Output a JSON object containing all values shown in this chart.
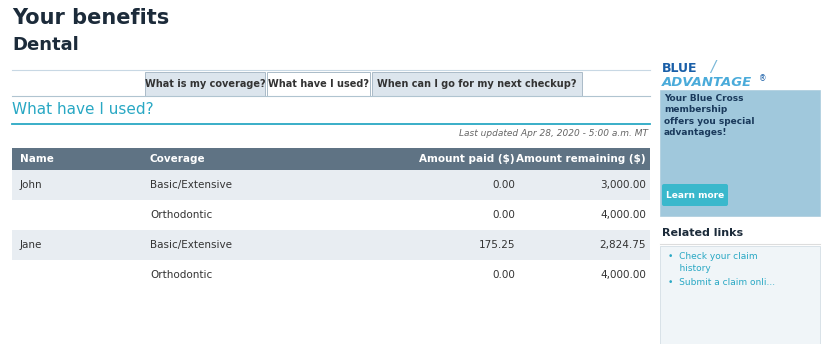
{
  "title1": "Your benefits",
  "title2": "Dental",
  "tab1": "What is my coverage?",
  "tab2": "What have I used?",
  "tab3": "When can I go for my next checkup?",
  "section_title": "What have I used?",
  "last_updated": "Last updated Apr 28, 2020 - 5:00 a.m. MT",
  "table_headers": [
    "Name",
    "Coverage",
    "Amount paid ($)",
    "Amount remaining ($)"
  ],
  "table_rows": [
    [
      "John",
      "Basic/Extensive",
      "0.00",
      "3,000.00"
    ],
    [
      "",
      "Orthodontic",
      "0.00",
      "4,000.00"
    ],
    [
      "Jane",
      "Basic/Extensive",
      "175.25",
      "2,824.75"
    ],
    [
      "",
      "Orthodontic",
      "0.00",
      "4,000.00"
    ]
  ],
  "header_bg": "#5f7384",
  "light_row_bg": "#e8edf2",
  "white_row_bg": "#ffffff",
  "tab_active_bg": "#ffffff",
  "tab_inactive_bg": "#dce5ed",
  "tab_border": "#aabbc8",
  "title_color": "#1c2b3a",
  "section_title_color": "#29a8c4",
  "header_text_color": "#ffffff",
  "body_text_color": "#333333",
  "last_updated_color": "#666666",
  "link_color": "#29a8c4",
  "blue_adv_color": "#1a5fa8",
  "blue_adv_light": "#4aabda",
  "adv_bg": "#b8daea",
  "learn_more_bg": "#3ab8cc",
  "learn_more_text": "#ffffff",
  "related_links_bg": "#f0f5f8",
  "related_links_border": "#ccd8e0",
  "fig_bg": "#ffffff",
  "sidebar_line_color": "#dddddd"
}
